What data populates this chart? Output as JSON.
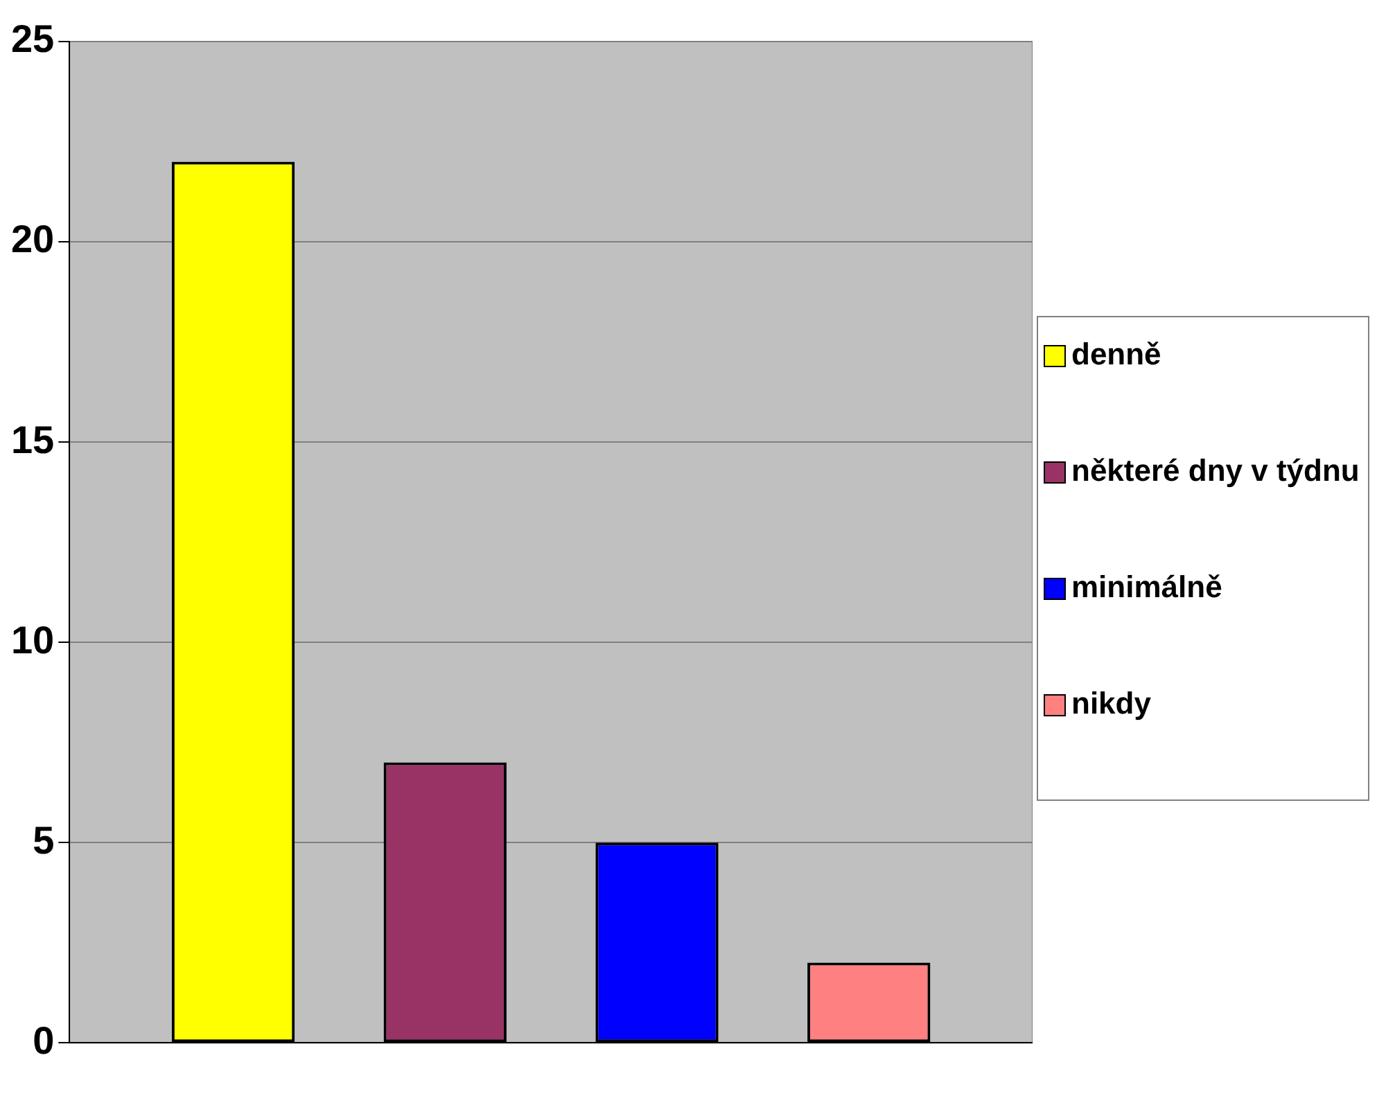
{
  "chart_data": {
    "type": "bar",
    "categories": [
      null
    ],
    "series": [
      {
        "name": "denně",
        "color": "#ffff00",
        "values": [
          22
        ]
      },
      {
        "name": "některé dny v týdnu",
        "color": "#993366",
        "values": [
          7
        ]
      },
      {
        "name": "minimálně",
        "color": "#0000ff",
        "values": [
          5
        ]
      },
      {
        "name": "nikdy",
        "color": "#ff8080",
        "values": [
          2
        ]
      }
    ],
    "ylim": [
      0,
      25
    ],
    "yticks": [
      0,
      5,
      10,
      15,
      20,
      25
    ],
    "grid": "y",
    "legend": "right"
  }
}
